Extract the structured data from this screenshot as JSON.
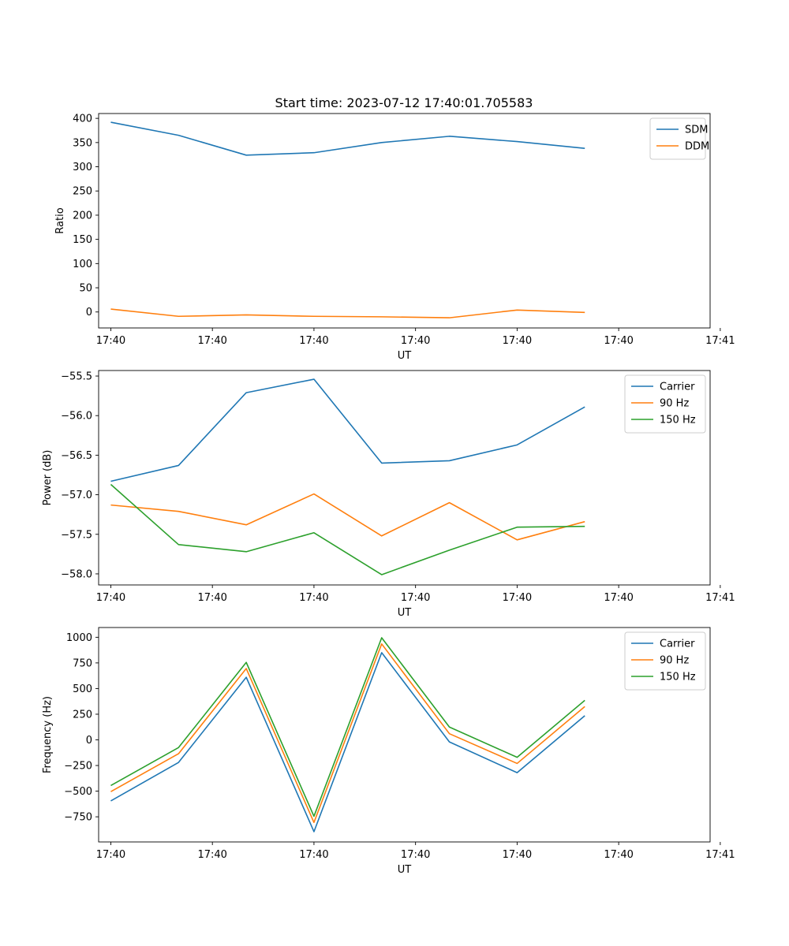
{
  "figure_title": "Start time: 2023-07-12 17:40:01.705583",
  "colors": {
    "blue": "#1f77b4",
    "orange": "#ff7f0e",
    "green": "#2ca02c"
  },
  "chart_data": [
    {
      "type": "line",
      "title": "Start time: 2023-07-12 17:40:01.705583",
      "xlabel": "UT",
      "ylabel": "Ratio",
      "x": [
        1,
        2,
        3,
        4,
        5,
        6,
        7,
        8
      ],
      "xlim": [
        0.82,
        9.85
      ],
      "xticks": [
        1,
        2.5,
        4,
        5.5,
        7,
        8.5,
        10
      ],
      "xtick_labels": [
        "17:40",
        "17:40",
        "17:40",
        "17:40",
        "17:40",
        "17:40",
        "17:41"
      ],
      "ylim": [
        -33,
        410
      ],
      "yticks": [
        0,
        50,
        100,
        150,
        200,
        250,
        300,
        350,
        400
      ],
      "ytick_labels": [
        "0",
        "50",
        "100",
        "150",
        "200",
        "250",
        "300",
        "350",
        "400"
      ],
      "legend_position": "top-right",
      "series": [
        {
          "name": "SDM",
          "color": "#1f77b4",
          "values": [
            392,
            365,
            324,
            329,
            350,
            363,
            352,
            338
          ]
        },
        {
          "name": "DDM",
          "color": "#ff7f0e",
          "values": [
            6,
            -9,
            -6,
            -9,
            -10,
            -12,
            4,
            -1
          ]
        }
      ]
    },
    {
      "type": "line",
      "xlabel": "UT",
      "ylabel": "Power (dB)",
      "x": [
        1,
        2,
        3,
        4,
        5,
        6,
        7,
        8
      ],
      "xlim": [
        0.82,
        9.85
      ],
      "xticks": [
        1,
        2.5,
        4,
        5.5,
        7,
        8.5,
        10
      ],
      "xtick_labels": [
        "17:40",
        "17:40",
        "17:40",
        "17:40",
        "17:40",
        "17:40",
        "17:41"
      ],
      "ylim": [
        -58.14,
        -55.43
      ],
      "yticks": [
        -58.0,
        -57.5,
        -57.0,
        -56.5,
        -56.0,
        -55.5
      ],
      "ytick_labels": [
        "−58.0",
        "−57.5",
        "−57.0",
        "−56.5",
        "−56.0",
        "−55.5"
      ],
      "legend_position": "top-right",
      "series": [
        {
          "name": "Carrier",
          "color": "#1f77b4",
          "values": [
            -56.83,
            -56.63,
            -55.71,
            -55.54,
            -56.6,
            -56.57,
            -56.37,
            -55.89
          ]
        },
        {
          "name": "90 Hz",
          "color": "#ff7f0e",
          "values": [
            -57.13,
            -57.21,
            -57.38,
            -56.99,
            -57.52,
            -57.1,
            -57.57,
            -57.34
          ]
        },
        {
          "name": "150 Hz",
          "color": "#2ca02c",
          "values": [
            -56.87,
            -57.63,
            -57.72,
            -57.48,
            -58.01,
            -57.7,
            -57.41,
            -57.4
          ]
        }
      ]
    },
    {
      "type": "line",
      "xlabel": "UT",
      "ylabel": "Frequency (Hz)",
      "x": [
        1,
        2,
        3,
        4,
        5,
        6,
        7,
        8
      ],
      "xlim": [
        0.82,
        9.85
      ],
      "xticks": [
        1,
        2.5,
        4,
        5.5,
        7,
        8.5,
        10
      ],
      "xtick_labels": [
        "17:40",
        "17:40",
        "17:40",
        "17:40",
        "17:40",
        "17:40",
        "17:41"
      ],
      "ylim": [
        -995,
        1095
      ],
      "yticks": [
        -750,
        -500,
        -250,
        0,
        250,
        500,
        750,
        1000
      ],
      "ytick_labels": [
        "−750",
        "−500",
        "−250",
        "0",
        "250",
        "500",
        "750",
        "1000"
      ],
      "legend_position": "top-right",
      "series": [
        {
          "name": "Carrier",
          "color": "#1f77b4",
          "values": [
            -595,
            -220,
            610,
            -895,
            850,
            -20,
            -320,
            235
          ]
        },
        {
          "name": "90 Hz",
          "color": "#ff7f0e",
          "values": [
            -505,
            -135,
            695,
            -805,
            935,
            60,
            -230,
            325
          ]
        },
        {
          "name": "150 Hz",
          "color": "#2ca02c",
          "values": [
            -445,
            -75,
            755,
            -745,
            995,
            125,
            -170,
            385
          ]
        }
      ]
    }
  ]
}
